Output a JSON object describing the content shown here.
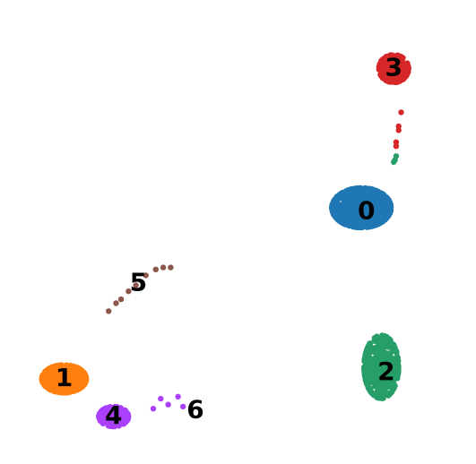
{
  "chart_data": {
    "type": "scatter",
    "title": "",
    "xlabel": "",
    "ylabel": "",
    "axes_visible": false,
    "grid": false,
    "legend": "on data",
    "series": [
      {
        "label": "0",
        "color": "#1f77b4",
        "label_at": [
          9.2,
          5.8
        ],
        "cloud": {
          "center": [
            9.0,
            6.0
          ],
          "spread": [
            1.2,
            1.0
          ],
          "count": 900
        }
      },
      {
        "label": "1",
        "color": "#ff7f0e",
        "label_at": [
          -3.0,
          -2.6
        ],
        "cloud": {
          "center": [
            -3.0,
            -2.6
          ],
          "spread": [
            0.9,
            0.7
          ],
          "count": 500
        }
      },
      {
        "label": "2",
        "color": "#279e68",
        "label_at": [
          10.0,
          -2.3
        ],
        "cloud": {
          "center": [
            9.8,
            -2.0
          ],
          "spread": [
            0.7,
            1.6
          ],
          "count": 420
        }
      },
      {
        "label": "3",
        "color": "#d62728",
        "label_at": [
          10.3,
          13.0
        ],
        "cloud": {
          "center": [
            10.3,
            13.0
          ],
          "spread": [
            0.6,
            0.7
          ],
          "count": 300
        }
      },
      {
        "label": "4",
        "color": "#aa40fc",
        "label_at": [
          -1.0,
          -4.5
        ],
        "cloud": {
          "center": [
            -1.0,
            -4.5
          ],
          "spread": [
            0.6,
            0.5
          ],
          "count": 260
        }
      },
      {
        "label": "5",
        "color": "#8c564b",
        "label_at": [
          0.0,
          2.2
        ],
        "points": [
          [
            -1.2,
            0.8
          ],
          [
            -0.9,
            1.2
          ],
          [
            -0.7,
            1.4
          ],
          [
            -0.4,
            1.8
          ],
          [
            -0.1,
            2.1
          ],
          [
            0.3,
            2.6
          ],
          [
            0.7,
            2.9
          ],
          [
            1.0,
            3.0
          ],
          [
            1.3,
            3.0
          ]
        ]
      },
      {
        "label": "6",
        "color": "#aa40fc",
        "label_at": [
          2.3,
          -4.2
        ],
        "points": [
          [
            0.9,
            -3.6
          ],
          [
            1.2,
            -3.9
          ],
          [
            1.6,
            -3.5
          ],
          [
            1.8,
            -4.0
          ],
          [
            0.6,
            -4.1
          ]
        ]
      }
    ],
    "extra_points": [
      {
        "color": "#d62728",
        "points": [
          [
            10.6,
            10.8
          ],
          [
            10.5,
            10.1
          ],
          [
            10.5,
            9.9
          ],
          [
            10.4,
            9.3
          ],
          [
            10.4,
            9.1
          ]
        ]
      },
      {
        "color": "#279e68",
        "points": [
          [
            10.4,
            8.6
          ],
          [
            10.3,
            8.3
          ],
          [
            10.35,
            8.4
          ]
        ]
      }
    ],
    "xlim": [
      -4.5,
      12.5
    ],
    "ylim": [
      -6.3,
      16.0
    ]
  }
}
